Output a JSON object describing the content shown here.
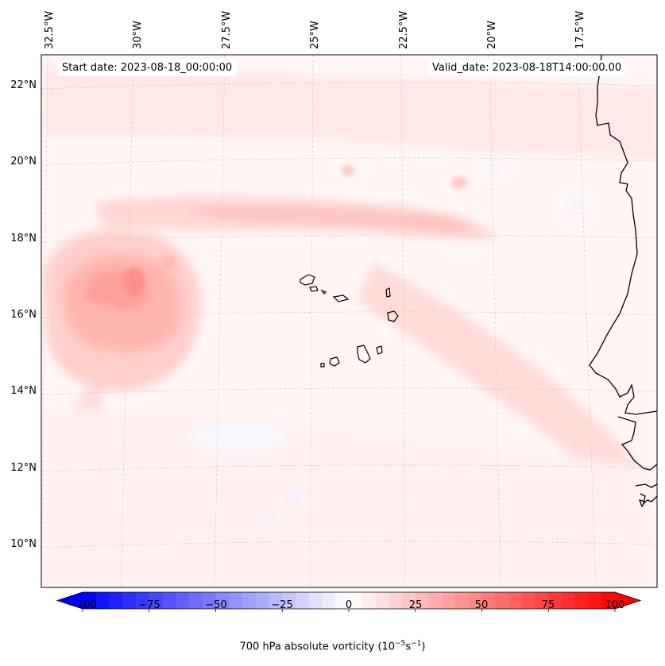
{
  "header": {
    "start_date": "Start date: 2023-08-18_00:00:00",
    "valid_date": "Valid_date: 2023-08-18T14:00:00.00"
  },
  "map": {
    "lon_labels": [
      "32.5°W",
      "30°W",
      "27.5°W",
      "25°W",
      "22.5°W",
      "20°W",
      "17.5°W"
    ],
    "lat_labels": [
      "22°N",
      "20°N",
      "18°N",
      "16°N",
      "14°N",
      "12°N",
      "10°N"
    ],
    "coastline_color": "#000000",
    "gridline_color": "#c8c8c8"
  },
  "colorbar": {
    "ticks": [
      "−100",
      "−75",
      "−50",
      "−25",
      "0",
      "25",
      "50",
      "75",
      "100"
    ],
    "title_prefix": "700 hPa absolute vorticity (10",
    "title_exp1": "−5",
    "title_mid": "s",
    "title_exp2": "−1",
    "title_suffix": ")",
    "colors": [
      "#0000ff",
      "#ffffff",
      "#ff0000"
    ]
  }
}
